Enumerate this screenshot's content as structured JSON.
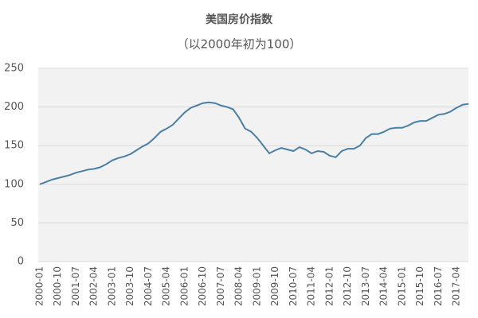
{
  "chart_data": {
    "type": "line",
    "title": "美国房价指数",
    "subtitle": "（以2000年初为100）",
    "categories": [
      "2000-01",
      null,
      null,
      "2000-10",
      null,
      null,
      "2001-07",
      null,
      null,
      "2002-04",
      null,
      null,
      "2003-01",
      null,
      null,
      "2003-10",
      null,
      null,
      "2004-07",
      null,
      null,
      "2005-04",
      null,
      null,
      "2006-01",
      null,
      null,
      "2006-10",
      null,
      null,
      "2007-07",
      null,
      null,
      "2008-04",
      null,
      null,
      "2009-01",
      null,
      null,
      "2009-10",
      null,
      null,
      "2010-07",
      null,
      null,
      "2011-04",
      null,
      null,
      "2012-01",
      null,
      null,
      "2012-10",
      null,
      null,
      "2013-07",
      null,
      null,
      "2014-04",
      null,
      null,
      "2015-01",
      null,
      null,
      "2015-10",
      null,
      null,
      "2016-07",
      null,
      null,
      "2017-04",
      null,
      null
    ],
    "values": [
      100,
      103,
      106,
      108,
      110,
      112,
      115,
      117,
      119,
      120,
      122,
      126,
      131,
      134,
      136,
      139,
      144,
      149,
      153,
      160,
      168,
      172,
      177,
      185,
      193,
      199,
      202,
      205,
      206,
      205,
      202,
      200,
      197,
      186,
      172,
      168,
      160,
      150,
      140,
      144,
      147,
      145,
      143,
      148,
      145,
      140,
      143,
      142,
      137,
      135,
      143,
      146,
      146,
      150,
      160,
      165,
      165,
      168,
      172,
      173,
      173,
      176,
      180,
      182,
      182,
      186,
      190,
      191,
      194,
      199,
      203,
      204
    ],
    "color": "#4a7fa7",
    "ylim": [
      0,
      250
    ],
    "yticks": [
      0,
      50,
      100,
      150,
      200,
      250
    ],
    "grid": true
  }
}
